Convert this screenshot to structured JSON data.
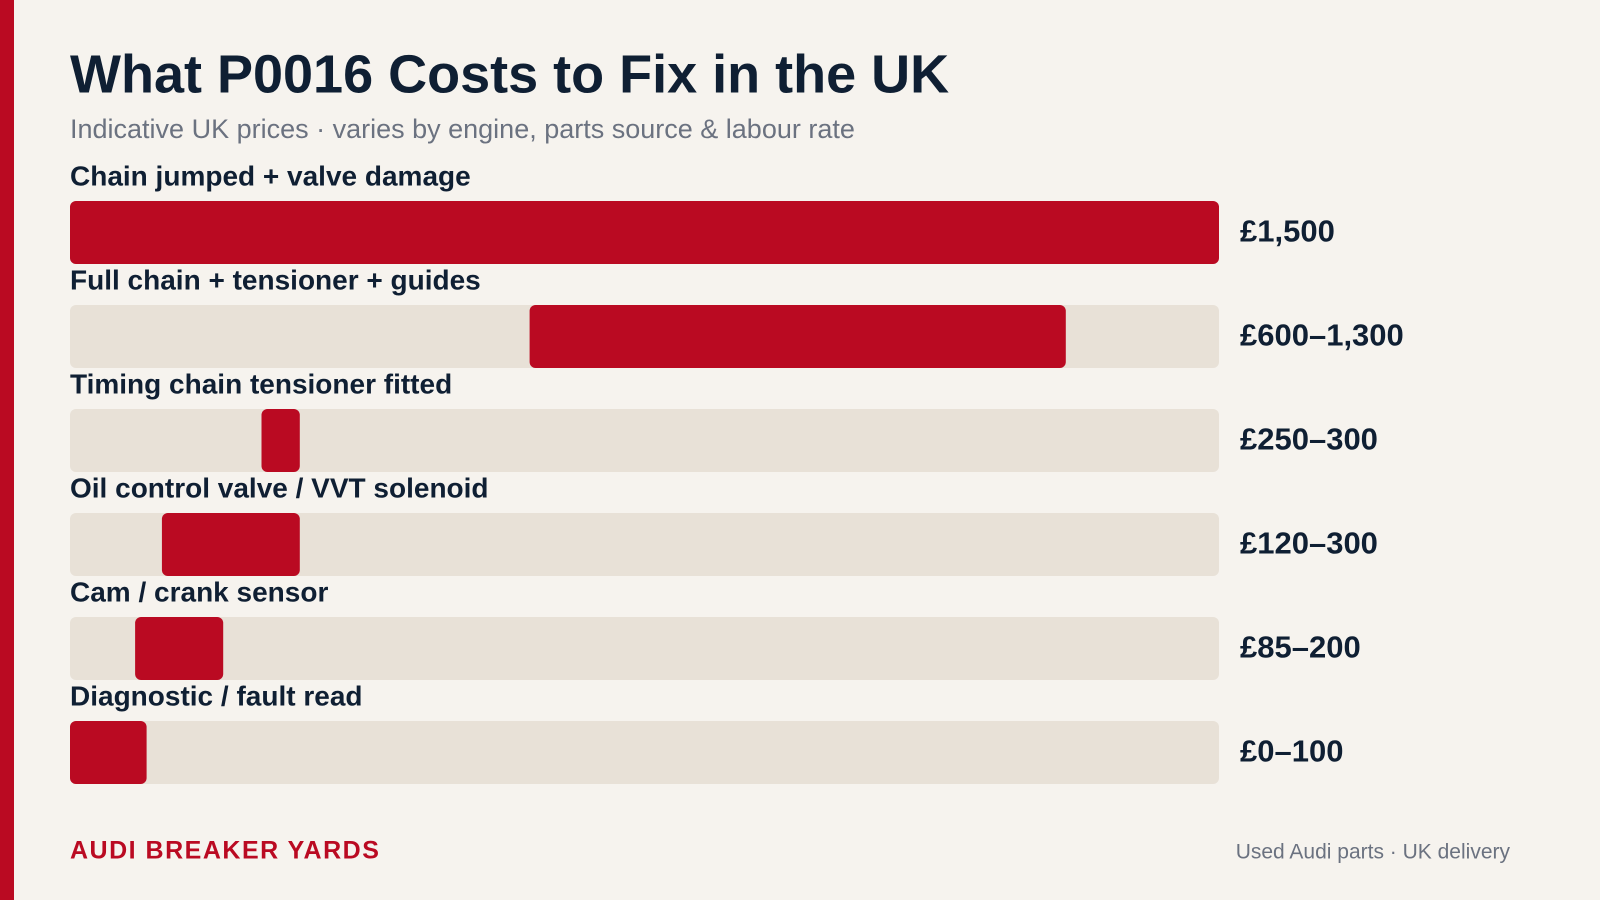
{
  "chart_data": {
    "type": "range_bar",
    "title": "What P0016 Costs to Fix in the UK",
    "subtitle": "Indicative UK prices · varies by engine, parts source & labour rate",
    "categories": [
      "Chain jumped + valve damage",
      "Full chain + tensioner + guides",
      "Timing chain tensioner fitted",
      "Oil control valve / VVT solenoid",
      "Cam / crank sensor",
      "Diagnostic / fault read"
    ],
    "low": [
      null,
      600,
      250,
      120,
      85,
      0
    ],
    "high": [
      1500,
      1300,
      300,
      300,
      200,
      100
    ],
    "value_labels": [
      "£1,500",
      "£600–1,300",
      "£250–300",
      "£120–300",
      "£85–200",
      "£0–100"
    ],
    "xlim": [
      0,
      1500
    ],
    "color": "#ba0a22",
    "track_color": "#e8e1d7"
  },
  "brand": "AUDI BREAKER YARDS",
  "footer": "Used Audi parts · UK delivery"
}
